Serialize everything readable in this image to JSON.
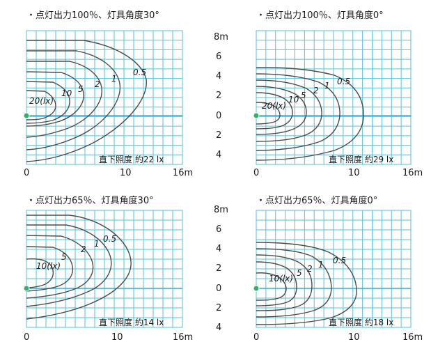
{
  "chart_data": [
    {
      "type": "contour",
      "title": "・点灯出力100％、灯具角度30°",
      "illuminance_label": "直下照度 約22 lx",
      "xticks": [
        "0",
        "10",
        "16m"
      ],
      "contour_labels": [
        "20(lx)",
        "10",
        "5",
        "2",
        "1",
        "0.5"
      ]
    },
    {
      "type": "contour",
      "title": "・点灯出力100％、灯具角度0°",
      "illuminance_label": "直下照度 約29 lx",
      "xticks": [
        "0",
        "10",
        "16m"
      ],
      "contour_labels": [
        "20(lx)",
        "10",
        "5",
        "2",
        "1",
        "0.5"
      ]
    },
    {
      "type": "contour",
      "title": "・点灯出力65％、灯具角度30°",
      "illuminance_label": "直下照度 約14 lx",
      "xticks": [
        "0",
        "10",
        "16m"
      ],
      "contour_labels": [
        "10(lx)",
        "5",
        "2",
        "1",
        "0.5"
      ]
    },
    {
      "type": "contour",
      "title": "・点灯出力65％、灯具角度0°",
      "illuminance_label": "直下照度 約18 lx",
      "xticks": [
        "0",
        "10",
        "16m"
      ],
      "contour_labels": [
        "10(lx)",
        "5",
        "2",
        "1",
        "0.5"
      ]
    }
  ],
  "y_scale_top": [
    "8m",
    "6",
    "4",
    "2",
    "0",
    "2",
    "4"
  ],
  "y_scale_bottom": [
    "8m",
    "6",
    "4",
    "2",
    "0",
    "2",
    "4"
  ],
  "colors": {
    "grid": "#56c2dc",
    "contour": "#4a4a4a",
    "origin": "#2eb36a"
  }
}
